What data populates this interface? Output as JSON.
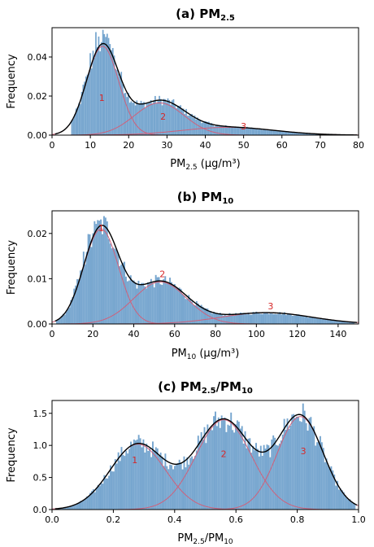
{
  "chart_data": [
    {
      "type": "histogram",
      "title": "(a) PM2.5",
      "title_main": "(a) PM",
      "title_sub": "2.5",
      "xlabel_main": "PM",
      "xlabel_sub": "2.5",
      "xlabel_unit": " (μg/m³)",
      "ylabel": "Frequency",
      "xlim": [
        0,
        80
      ],
      "ylim": [
        0,
        0.055
      ],
      "xticks": [
        "0",
        "10",
        "20",
        "30",
        "40",
        "50",
        "60",
        "70",
        "80"
      ],
      "yticks": [
        "0.00",
        "0.02",
        "0.04"
      ],
      "hist_range": [
        5,
        75
      ],
      "components": [
        {
          "label": "1",
          "mean": 13.2,
          "sd": 4.2,
          "peak": 0.0455,
          "label_x": 13,
          "label_y": 0.0175
        },
        {
          "label": "2",
          "mean": 28.0,
          "sd": 6.5,
          "peak": 0.0165,
          "label_x": 29,
          "label_y": 0.008
        },
        {
          "label": "3",
          "mean": 46.0,
          "sd": 12.0,
          "peak": 0.004,
          "label_x": 50,
          "label_y": 0.003
        }
      ]
    },
    {
      "type": "histogram",
      "title": "(b) PM10",
      "title_main": "(b) PM",
      "title_sub": "10",
      "xlabel_main": "PM",
      "xlabel_sub": "10",
      "xlabel_unit": " (μg/m³)",
      "ylabel": "Frequency",
      "xlim": [
        0,
        150
      ],
      "ylim": [
        0,
        0.025
      ],
      "xticks": [
        "0",
        "20",
        "40",
        "60",
        "80",
        "100",
        "120",
        "140"
      ],
      "yticks": [
        "0.00",
        "0.01",
        "0.02"
      ],
      "hist_range": [
        2,
        148
      ],
      "components": [
        {
          "label": "1",
          "mean": 24.0,
          "sd": 8.5,
          "peak": 0.021,
          "label_x": 24,
          "label_y": 0.0205
        },
        {
          "label": "2",
          "mean": 53.0,
          "sd": 13.0,
          "peak": 0.0093,
          "label_x": 54,
          "label_y": 0.0103
        },
        {
          "label": "3",
          "mean": 105.0,
          "sd": 22.0,
          "peak": 0.0025,
          "label_x": 107,
          "label_y": 0.0032
        }
      ]
    },
    {
      "type": "histogram",
      "title": "(c) PM2.5/PM10",
      "title_main": "(c) PM",
      "title_sub": "2.5",
      "title_mid": "/PM",
      "title_sub2": "10",
      "xlabel_main": "PM",
      "xlabel_sub": "2.5",
      "xlabel_mid": "/PM",
      "xlabel_sub2": "10",
      "ylabel": "Frequency",
      "xlim": [
        0.0,
        1.0
      ],
      "ylim": [
        0,
        1.7
      ],
      "xticks": [
        "0.0",
        "0.2",
        "0.4",
        "0.6",
        "0.8",
        "1.0"
      ],
      "yticks": [
        "0.0",
        "0.5",
        "1.0",
        "1.5"
      ],
      "hist_range": [
        0.02,
        0.99
      ],
      "components": [
        {
          "label": "1",
          "mean": 0.28,
          "sd": 0.09,
          "peak": 1.02,
          "label_x": 0.27,
          "label_y": 0.72
        },
        {
          "label": "2",
          "mean": 0.56,
          "sd": 0.09,
          "peak": 1.4,
          "label_x": 0.56,
          "label_y": 0.82
        },
        {
          "label": "3",
          "mean": 0.81,
          "sd": 0.075,
          "peak": 1.45,
          "label_x": 0.82,
          "label_y": 0.86
        }
      ]
    }
  ],
  "colors": {
    "hist": "#77a6cf",
    "component": "#d0607a",
    "total": "#000000",
    "label": "#d62728"
  }
}
